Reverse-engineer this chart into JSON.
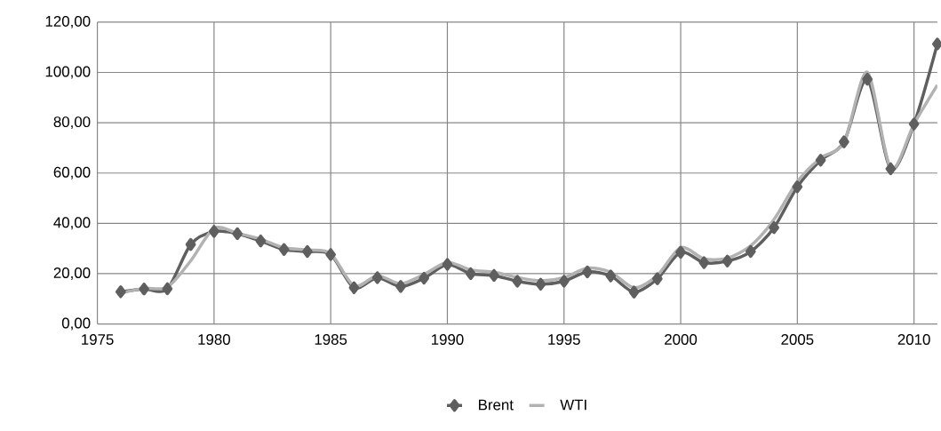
{
  "chart_data": {
    "type": "line",
    "x": [
      1976,
      1977,
      1978,
      1979,
      1980,
      1981,
      1982,
      1983,
      1984,
      1985,
      1986,
      1987,
      1988,
      1989,
      1990,
      1991,
      1992,
      1993,
      1994,
      1995,
      1996,
      1997,
      1998,
      1999,
      2000,
      2001,
      2002,
      2003,
      2004,
      2005,
      2006,
      2007,
      2008,
      2009,
      2010,
      2011
    ],
    "series": [
      {
        "name": "Brent",
        "color": "#5f5f5f",
        "marker": "diamond",
        "values": [
          12.8,
          13.9,
          14.0,
          31.6,
          36.8,
          35.9,
          33.0,
          29.6,
          28.8,
          27.6,
          14.4,
          18.4,
          14.9,
          18.2,
          23.7,
          20.0,
          19.3,
          17.0,
          15.8,
          17.0,
          20.7,
          19.1,
          12.7,
          18.0,
          28.5,
          24.4,
          25.0,
          28.8,
          38.3,
          54.5,
          65.1,
          72.4,
          97.3,
          61.7,
          79.5,
          111.3
        ]
      },
      {
        "name": "WTI",
        "color": "#b2b2b2",
        "marker": "none",
        "values": [
          12.2,
          14.2,
          14.6,
          25.1,
          38.0,
          36.1,
          33.7,
          30.3,
          29.4,
          28.0,
          15.1,
          19.2,
          16.0,
          19.7,
          24.5,
          21.5,
          20.6,
          18.5,
          17.2,
          18.4,
          22.2,
          20.6,
          14.4,
          19.3,
          30.4,
          25.9,
          26.2,
          31.1,
          41.5,
          56.6,
          66.0,
          72.2,
          100.1,
          61.9,
          79.5,
          95.0
        ]
      }
    ],
    "xlim": [
      1975,
      2011
    ],
    "xticks": [
      1975,
      1980,
      1985,
      1990,
      1995,
      2000,
      2005,
      2010
    ],
    "ylim": [
      0,
      120
    ],
    "yticks": [
      {
        "value": 0,
        "label": "0,00"
      },
      {
        "value": 20,
        "label": "20,00"
      },
      {
        "value": 40,
        "label": "40,00"
      },
      {
        "value": 60,
        "label": "60,00"
      },
      {
        "value": 80,
        "label": "80,00"
      },
      {
        "value": 100,
        "label": "100,00"
      },
      {
        "value": 120,
        "label": "120,00"
      }
    ],
    "grid": true,
    "legend": "bottom",
    "line_style": "solid"
  }
}
